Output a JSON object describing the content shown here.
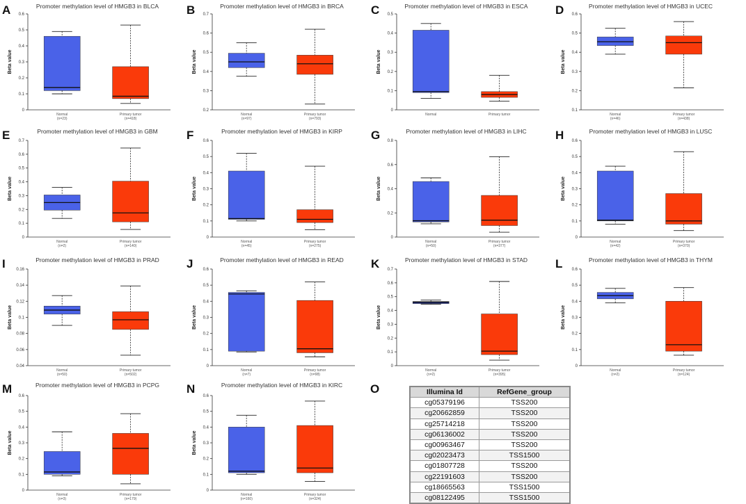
{
  "colors": {
    "normal": "#4a62e8",
    "tumor": "#fa3a0a",
    "stad_normal": "#1c2a8c"
  },
  "chart_data": [
    {
      "panel": "A",
      "type": "box",
      "title": "Promoter methylation level of HMGB3 in BLCA",
      "ylabel": "Beta value",
      "ylim": [
        0,
        0.6
      ],
      "yticks": [
        0,
        0.1,
        0.2,
        0.3,
        0.4,
        0.5,
        0.6
      ],
      "ytick_labels": [
        "0",
        "0.1",
        "0.2",
        "0.3",
        "0.4",
        "0.5",
        "0.6"
      ],
      "groups": [
        {
          "label": "Normal",
          "n": "(n=23)",
          "min": 0.1,
          "q1": 0.12,
          "median": 0.14,
          "q3": 0.46,
          "max": 0.49
        },
        {
          "label": "Primary tumor",
          "n": "(n=418)",
          "min": 0.04,
          "q1": 0.07,
          "median": 0.085,
          "q3": 0.27,
          "max": 0.53
        }
      ]
    },
    {
      "panel": "B",
      "type": "box",
      "title": "Promoter methylation level of HMGB3 in BRCA",
      "ylabel": "Beta value",
      "ylim": [
        0.2,
        0.7
      ],
      "yticks": [
        0.2,
        0.3,
        0.4,
        0.5,
        0.6,
        0.7
      ],
      "ytick_labels": [
        "0.2",
        "0.3",
        "0.4",
        "0.5",
        "0.6",
        "0.7"
      ],
      "groups": [
        {
          "label": "Normal",
          "n": "(n=97)",
          "min": 0.375,
          "q1": 0.42,
          "median": 0.45,
          "q3": 0.495,
          "max": 0.55
        },
        {
          "label": "Primary tumor",
          "n": "(n=793)",
          "min": 0.23,
          "q1": 0.385,
          "median": 0.44,
          "q3": 0.485,
          "max": 0.62
        }
      ]
    },
    {
      "panel": "C",
      "type": "box",
      "title": "Promoter methylation level of HMGB3 in ESCA",
      "ylabel": "Beta value",
      "ylim": [
        0,
        0.5
      ],
      "yticks": [
        0,
        0.1,
        0.2,
        0.3,
        0.4,
        0.5
      ],
      "ytick_labels": [
        "0",
        "0.1",
        "0.2",
        "0.3",
        "0.4",
        "0.5"
      ],
      "groups": [
        {
          "label": "Normal",
          "n": "",
          "min": 0.06,
          "q1": 0.09,
          "median": 0.095,
          "q3": 0.415,
          "max": 0.45
        },
        {
          "label": "Primary tumor",
          "n": "",
          "min": 0.045,
          "q1": 0.065,
          "median": 0.08,
          "q3": 0.095,
          "max": 0.18
        }
      ]
    },
    {
      "panel": "D",
      "type": "box",
      "title": "Promoter methylation level of HMGB3 in UCEC",
      "ylabel": "Beta value",
      "ylim": [
        0.1,
        0.6
      ],
      "yticks": [
        0.1,
        0.2,
        0.3,
        0.4,
        0.5,
        0.6
      ],
      "ytick_labels": [
        "0.1",
        "0.2",
        "0.3",
        "0.4",
        "0.5",
        "0.6"
      ],
      "groups": [
        {
          "label": "Normal",
          "n": "(n=46)",
          "min": 0.39,
          "q1": 0.435,
          "median": 0.455,
          "q3": 0.48,
          "max": 0.525
        },
        {
          "label": "Primary tumor",
          "n": "(n=438)",
          "min": 0.215,
          "q1": 0.39,
          "median": 0.45,
          "q3": 0.485,
          "max": 0.56
        }
      ]
    },
    {
      "panel": "E",
      "type": "box",
      "title": "Promoter methylation level of HMGB3 in GBM",
      "ylabel": "Beta value",
      "ylim": [
        0,
        0.7
      ],
      "yticks": [
        0,
        0.1,
        0.2,
        0.3,
        0.4,
        0.5,
        0.6,
        0.7
      ],
      "ytick_labels": [
        "0",
        "0.1",
        "0.2",
        "0.3",
        "0.4",
        "0.5",
        "0.6",
        "0.7"
      ],
      "groups": [
        {
          "label": "Normal",
          "n": "(n=2)",
          "min": 0.135,
          "q1": 0.195,
          "median": 0.25,
          "q3": 0.305,
          "max": 0.36
        },
        {
          "label": "Primary tumor",
          "n": "(n=140)",
          "min": 0.055,
          "q1": 0.11,
          "median": 0.175,
          "q3": 0.405,
          "max": 0.645
        }
      ]
    },
    {
      "panel": "F",
      "type": "box",
      "title": "Promoter methylation level of HMGB3 in KIRP",
      "ylabel": "Beta value",
      "ylim": [
        0,
        0.6
      ],
      "yticks": [
        0,
        0.1,
        0.2,
        0.3,
        0.4,
        0.5,
        0.6
      ],
      "ytick_labels": [
        "0",
        "0.1",
        "0.2",
        "0.3",
        "0.4",
        "0.5",
        "0.6"
      ],
      "groups": [
        {
          "label": "Normal",
          "n": "(n=45)",
          "min": 0.1,
          "q1": 0.11,
          "median": 0.115,
          "q3": 0.41,
          "max": 0.52
        },
        {
          "label": "Primary tumor",
          "n": "(n=275)",
          "min": 0.045,
          "q1": 0.09,
          "median": 0.11,
          "q3": 0.17,
          "max": 0.44
        }
      ]
    },
    {
      "panel": "G",
      "type": "box",
      "title": "Promoter methylation level of HMGB3 in LIHC",
      "ylabel": "Beta value",
      "ylim": [
        0,
        0.8
      ],
      "yticks": [
        0,
        0.2,
        0.4,
        0.6,
        0.8
      ],
      "ytick_labels": [
        "0",
        "0.2",
        "0.4",
        "0.6",
        "0.8"
      ],
      "groups": [
        {
          "label": "Normal",
          "n": "(n=50)",
          "min": 0.11,
          "q1": 0.125,
          "median": 0.135,
          "q3": 0.46,
          "max": 0.49
        },
        {
          "label": "Primary tumor",
          "n": "(n=377)",
          "min": 0.04,
          "q1": 0.095,
          "median": 0.14,
          "q3": 0.345,
          "max": 0.665
        }
      ]
    },
    {
      "panel": "H",
      "type": "box",
      "title": "Promoter methylation level of HMGB3 in LUSC",
      "ylabel": "Beta value",
      "ylim": [
        0,
        0.6
      ],
      "yticks": [
        0,
        0.1,
        0.2,
        0.3,
        0.4,
        0.5,
        0.6
      ],
      "ytick_labels": [
        "0",
        "0.1",
        "0.2",
        "0.3",
        "0.4",
        "0.5",
        "0.6"
      ],
      "groups": [
        {
          "label": "Normal",
          "n": "(n=42)",
          "min": 0.08,
          "q1": 0.1,
          "median": 0.105,
          "q3": 0.41,
          "max": 0.44
        },
        {
          "label": "Primary tumor",
          "n": "(n=370)",
          "min": 0.04,
          "q1": 0.08,
          "median": 0.1,
          "q3": 0.27,
          "max": 0.53
        }
      ]
    },
    {
      "panel": "I",
      "type": "box",
      "title": "Promoter methylation level of HMGB3 in PRAD",
      "ylabel": "Beta value",
      "ylim": [
        0.04,
        0.16
      ],
      "yticks": [
        0.04,
        0.06,
        0.08,
        0.1,
        0.12,
        0.14,
        0.16
      ],
      "ytick_labels": [
        "0.04",
        "0.06",
        "0.08",
        "0.1",
        "0.12",
        "0.14",
        "0.16"
      ],
      "groups": [
        {
          "label": "Normal",
          "n": "(n=50)",
          "min": 0.09,
          "q1": 0.104,
          "median": 0.109,
          "q3": 0.114,
          "max": 0.127
        },
        {
          "label": "Primary tumor",
          "n": "(n=502)",
          "min": 0.053,
          "q1": 0.085,
          "median": 0.097,
          "q3": 0.107,
          "max": 0.139
        }
      ]
    },
    {
      "panel": "J",
      "type": "box",
      "title": "Promoter methylation level of HMGB3 in READ",
      "ylabel": "Beta value",
      "ylim": [
        0,
        0.6
      ],
      "yticks": [
        0,
        0.1,
        0.2,
        0.3,
        0.4,
        0.5,
        0.6
      ],
      "ytick_labels": [
        "0",
        "0.1",
        "0.2",
        "0.3",
        "0.4",
        "0.5",
        "0.6"
      ],
      "groups": [
        {
          "label": "Normal",
          "n": "(n=7)",
          "min": 0.085,
          "q1": 0.09,
          "median": 0.445,
          "q3": 0.455,
          "max": 0.465
        },
        {
          "label": "Primary tumor",
          "n": "(n=98)",
          "min": 0.055,
          "q1": 0.08,
          "median": 0.105,
          "q3": 0.405,
          "max": 0.52
        }
      ]
    },
    {
      "panel": "K",
      "type": "box",
      "title": "Promoter methylation level of HMGB3 in STAD",
      "ylabel": "Beta value",
      "ylim": [
        0,
        0.7
      ],
      "yticks": [
        0,
        0.1,
        0.2,
        0.3,
        0.4,
        0.5,
        0.6,
        0.7
      ],
      "ytick_labels": [
        "0",
        "0.1",
        "0.2",
        "0.3",
        "0.4",
        "0.5",
        "0.6",
        "0.7"
      ],
      "groups": [
        {
          "label": "Normal",
          "n": "(n=2)",
          "min": 0.445,
          "q1": 0.45,
          "median": 0.46,
          "q3": 0.465,
          "max": 0.475
        },
        {
          "label": "Primary tumor",
          "n": "(n=395)",
          "min": 0.04,
          "q1": 0.08,
          "median": 0.105,
          "q3": 0.375,
          "max": 0.61
        }
      ]
    },
    {
      "panel": "L",
      "type": "box",
      "title": "Promoter methylation level of HMGB3 in THYM",
      "ylabel": "Beta value",
      "ylim": [
        0,
        0.6
      ],
      "yticks": [
        0,
        0.1,
        0.2,
        0.3,
        0.4,
        0.5,
        0.6
      ],
      "ytick_labels": [
        "0",
        "0.1",
        "0.2",
        "0.3",
        "0.4",
        "0.5",
        "0.6"
      ],
      "groups": [
        {
          "label": "Normal",
          "n": "(n=2)",
          "min": 0.39,
          "q1": 0.415,
          "median": 0.435,
          "q3": 0.455,
          "max": 0.48
        },
        {
          "label": "Primary tumor",
          "n": "(n=124)",
          "min": 0.065,
          "q1": 0.09,
          "median": 0.13,
          "q3": 0.4,
          "max": 0.485
        }
      ]
    },
    {
      "panel": "M",
      "type": "box",
      "title": "Promoter methylation level of HMGB3 in PCPG",
      "ylabel": "Beta value",
      "ylim": [
        0,
        0.6
      ],
      "yticks": [
        0,
        0.1,
        0.2,
        0.3,
        0.4,
        0.5,
        0.6
      ],
      "ytick_labels": [
        "0",
        "0.1",
        "0.2",
        "0.3",
        "0.4",
        "0.5",
        "0.6"
      ],
      "groups": [
        {
          "label": "Normal",
          "n": "(n=3)",
          "min": 0.09,
          "q1": 0.1,
          "median": 0.115,
          "q3": 0.245,
          "max": 0.37
        },
        {
          "label": "Primary tumor",
          "n": "(n=179)",
          "min": 0.04,
          "q1": 0.1,
          "median": 0.265,
          "q3": 0.36,
          "max": 0.485
        }
      ]
    },
    {
      "panel": "N",
      "type": "box",
      "title": "Promoter methylation level of HMGB3 in KIRC",
      "ylabel": "Beta value",
      "ylim": [
        0,
        0.6
      ],
      "yticks": [
        0,
        0.1,
        0.2,
        0.3,
        0.4,
        0.5,
        0.6
      ],
      "ytick_labels": [
        "0",
        "0.1",
        "0.2",
        "0.3",
        "0.4",
        "0.5",
        "0.6"
      ],
      "groups": [
        {
          "label": "Normal",
          "n": "(n=160)",
          "min": 0.1,
          "q1": 0.11,
          "median": 0.12,
          "q3": 0.4,
          "max": 0.475
        },
        {
          "label": "Primary tumor",
          "n": "(n=324)",
          "min": 0.055,
          "q1": 0.11,
          "median": 0.14,
          "q3": 0.41,
          "max": 0.565
        }
      ]
    },
    {
      "panel": "O",
      "type": "table",
      "columns": [
        "Illumina Id",
        "RefGene_group"
      ],
      "rows": [
        [
          "cg05379196",
          "TSS200"
        ],
        [
          "cg20662859",
          "TSS200"
        ],
        [
          "cg25714218",
          "TSS200"
        ],
        [
          "cg06136002",
          "TSS200"
        ],
        [
          "cg00963467",
          "TSS200"
        ],
        [
          "cg02023473",
          "TSS1500"
        ],
        [
          "cg01807728",
          "TSS200"
        ],
        [
          "cg22191603",
          "TSS200"
        ],
        [
          "cg18665563",
          "TSS1500"
        ],
        [
          "cg08122495",
          "TSS1500"
        ]
      ]
    }
  ]
}
